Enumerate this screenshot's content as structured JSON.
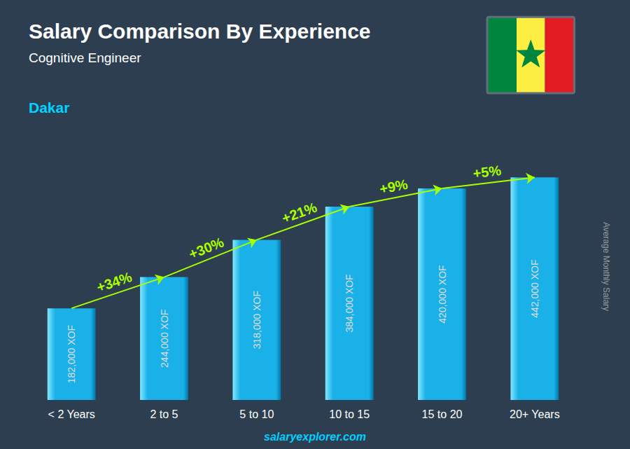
{
  "chart_data": {
    "type": "bar",
    "title": "Salary Comparison By Experience",
    "subtitle": "Cognitive Engineer",
    "annotations": [
      "Dakar",
      "salaryexplorer.com"
    ],
    "ylabel": "Average Monthly Salary",
    "categories": [
      "< 2 Years",
      "2 to 5",
      "5 to 10",
      "10 to 15",
      "15 to 20",
      "20+ Years"
    ],
    "values": [
      182000,
      244000,
      318000,
      384000,
      420000,
      442000
    ],
    "value_labels": [
      "182,000 XOF",
      "244,000 XOF",
      "318,000 XOF",
      "384,000 XOF",
      "420,000 XOF",
      "442,000 XOF"
    ],
    "data_labels": true,
    "change_labels": [
      "+34%",
      "+30%",
      "+21%",
      "+9%",
      "+5%"
    ],
    "color": "#1ab0e8",
    "ylim": [
      0,
      530000
    ],
    "grid": false,
    "tick_labels": "x"
  }
}
